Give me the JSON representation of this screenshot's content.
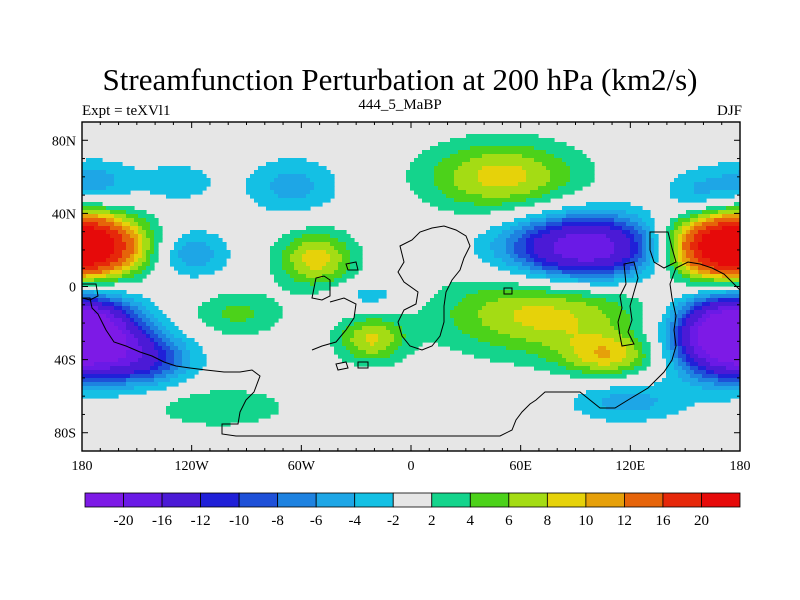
{
  "chart_data": {
    "type": "heatmap",
    "title": "Streamfunction Perturbation at 200 hPa (km2/s)",
    "left_label": "Expt = teXVl1",
    "center_label": "444_5_MaBP",
    "right_label": "DJF",
    "xlim": [
      -180,
      180
    ],
    "ylim": [
      -90,
      90
    ],
    "x_ticks": [
      {
        "value": -180,
        "label": "180"
      },
      {
        "value": -120,
        "label": "120W"
      },
      {
        "value": -60,
        "label": "60W"
      },
      {
        "value": 0,
        "label": "0"
      },
      {
        "value": 60,
        "label": "60E"
      },
      {
        "value": 120,
        "label": "120E"
      },
      {
        "value": 180,
        "label": "180"
      }
    ],
    "y_ticks": [
      {
        "value": 80,
        "label": "80N"
      },
      {
        "value": 40,
        "label": "40N"
      },
      {
        "value": 0,
        "label": "0"
      },
      {
        "value": -40,
        "label": "40S"
      },
      {
        "value": -80,
        "label": "80S"
      }
    ],
    "levels": [
      -20,
      -16,
      -12,
      -10,
      -8,
      -6,
      -4,
      -2,
      2,
      4,
      6,
      8,
      10,
      12,
      16,
      20
    ],
    "level_labels": [
      "-20",
      "-16",
      "-12",
      "-10",
      "-8",
      "-6",
      "-4",
      "-2",
      "2",
      "4",
      "6",
      "8",
      "10",
      "12",
      "16",
      "20"
    ],
    "colors": [
      "#7d1ae6",
      "#6a1ae6",
      "#4b1ad6",
      "#2020d8",
      "#1e50d8",
      "#1e82e0",
      "#1ea6e6",
      "#14c0e4",
      "#e6e6e6",
      "#14d48c",
      "#4cd21a",
      "#a4dc14",
      "#e6d20a",
      "#e6a00a",
      "#e6640a",
      "#e6280a",
      "#e60a0a"
    ],
    "centers": [
      {
        "lon": -172,
        "lat": 22,
        "amp": 18,
        "rx": 20,
        "ry": 12
      },
      {
        "lon": -172,
        "lat": 57,
        "amp": -5,
        "rx": 15,
        "ry": 9
      },
      {
        "lon": -128,
        "lat": 57,
        "amp": -3.5,
        "rx": 15,
        "ry": 8
      },
      {
        "lon": -120,
        "lat": 18,
        "amp": -6,
        "rx": 14,
        "ry": 9
      },
      {
        "lon": -65,
        "lat": 55,
        "amp": -5,
        "rx": 18,
        "ry": 11
      },
      {
        "lon": -52,
        "lat": 15,
        "amp": 9,
        "rx": 15,
        "ry": 11
      },
      {
        "lon": 50,
        "lat": 60,
        "amp": 9,
        "rx": 30,
        "ry": 14
      },
      {
        "lon": 95,
        "lat": 21,
        "amp": -20,
        "rx": 30,
        "ry": 13
      },
      {
        "lon": 158,
        "lat": 50,
        "amp": -5,
        "rx": 14,
        "ry": 10
      },
      {
        "lon": 165,
        "lat": 22,
        "amp": 18,
        "rx": 20,
        "ry": 13
      },
      {
        "lon": -175,
        "lat": -27,
        "amp": -18,
        "rx": 20,
        "ry": 14
      },
      {
        "lon": -145,
        "lat": -40,
        "amp": -10,
        "rx": 18,
        "ry": 10
      },
      {
        "lon": -95,
        "lat": -15,
        "amp": 4.5,
        "rx": 18,
        "ry": 9
      },
      {
        "lon": -22,
        "lat": -29,
        "amp": 8,
        "rx": 13,
        "ry": 9
      },
      {
        "lon": -22,
        "lat": -5,
        "amp": -3.5,
        "rx": 15,
        "ry": 6
      },
      {
        "lon": 73,
        "lat": -15,
        "amp": 9,
        "rx": 40,
        "ry": 16
      },
      {
        "lon": 108,
        "lat": -38,
        "amp": 8,
        "rx": 18,
        "ry": 8
      },
      {
        "lon": 170,
        "lat": -27,
        "amp": -18,
        "rx": 20,
        "ry": 15
      },
      {
        "lon": -105,
        "lat": -66,
        "amp": 4,
        "rx": 28,
        "ry": 8
      },
      {
        "lon": 118,
        "lat": -63,
        "amp": -5,
        "rx": 22,
        "ry": 8
      }
    ]
  }
}
